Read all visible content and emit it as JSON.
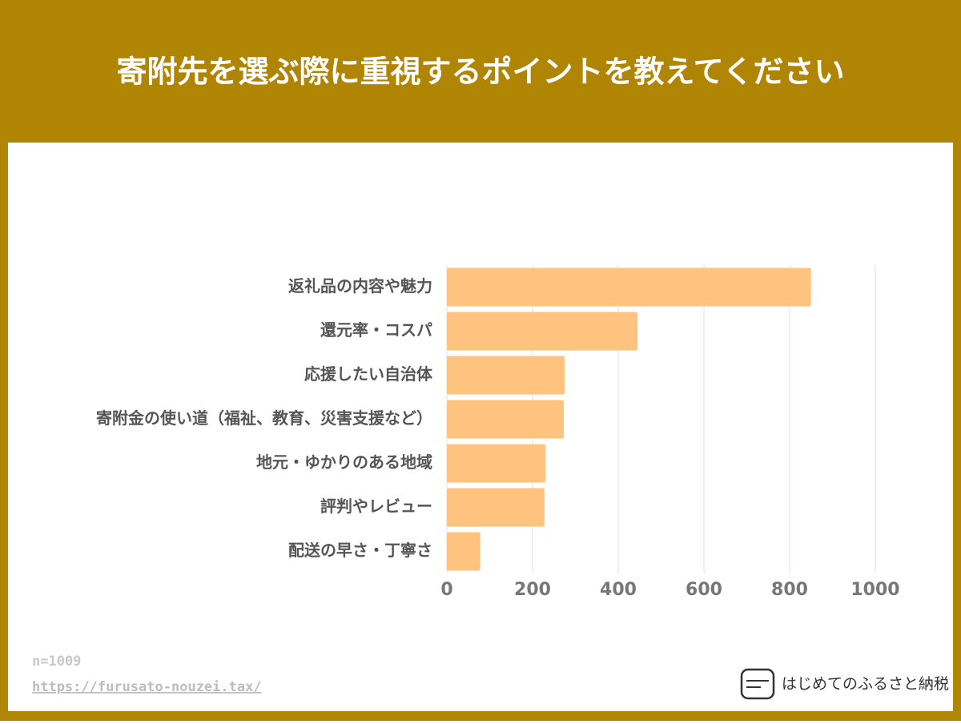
{
  "chart_data": {
    "type": "bar",
    "orientation": "horizontal",
    "title": "寄附先を選ぶ際に重視するポイントを教えてください",
    "categories": [
      "返礼品の内容や魅力",
      "還元率・コスパ",
      "応援したい自治体",
      "寄附金の使い道（福祉、教育、災害支援など）",
      "地元・ゆかりのある地域",
      "評判やレビュー",
      "配送の早さ・丁寧さ"
    ],
    "values": [
      850,
      445,
      275,
      273,
      230,
      228,
      78
    ],
    "color": "#ffc380",
    "xlim": [
      0,
      1000
    ],
    "xticks": [
      0,
      200,
      400,
      600,
      800,
      1000
    ],
    "grid": true,
    "note": "n=1009",
    "source": "https://furusato-nouzei.tax/",
    "brand": "はじめてのふるさと納税"
  }
}
